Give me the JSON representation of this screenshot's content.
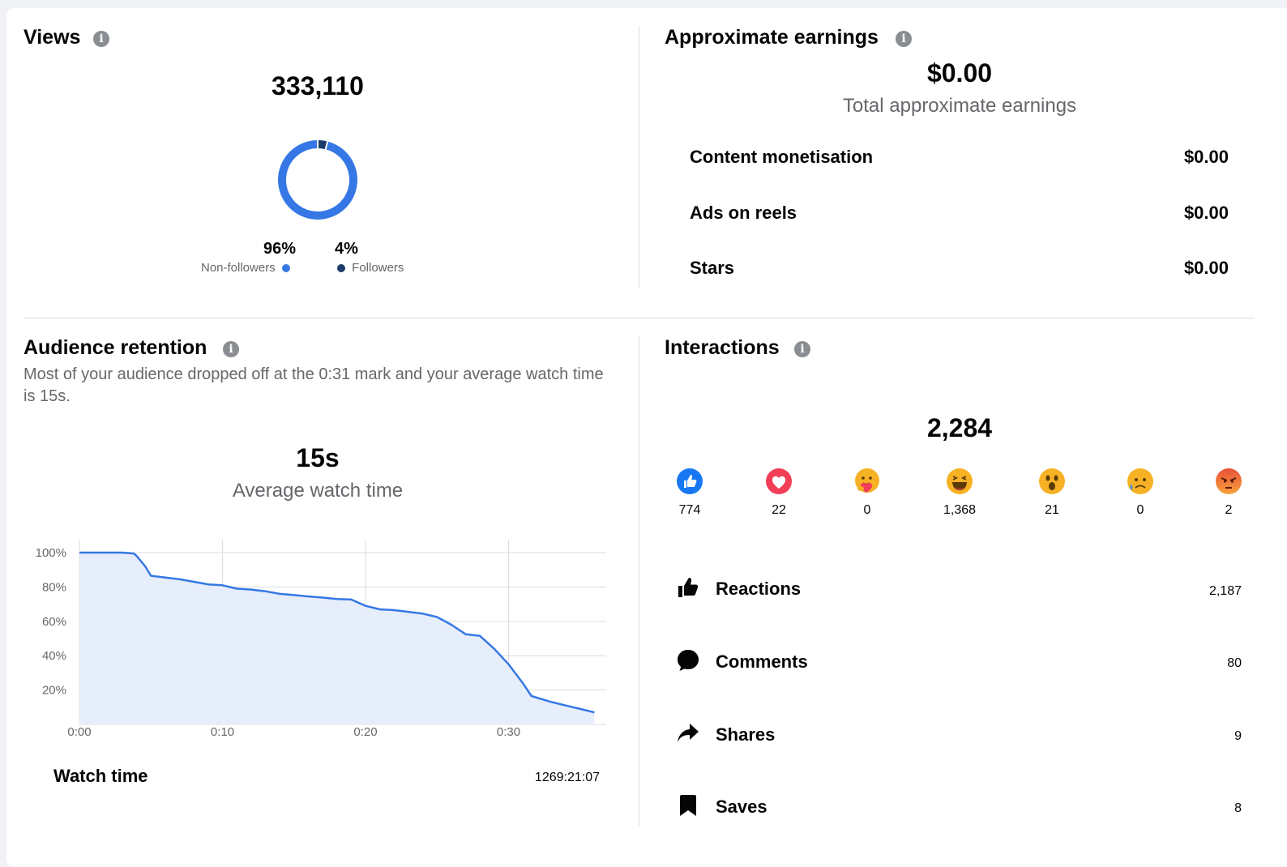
{
  "views": {
    "title": "Views",
    "total": "333,110",
    "non_followers": {
      "pct": "96%",
      "label": "Non-followers",
      "fraction": 0.96,
      "color": "#3578e5"
    },
    "followers": {
      "pct": "4%",
      "label": "Followers",
      "fraction": 0.04,
      "color": "#1c3d6b"
    }
  },
  "earnings": {
    "title": "Approximate earnings",
    "total": "$0.00",
    "total_label": "Total approximate earnings",
    "rows": [
      {
        "label": "Content monetisation",
        "value": "$0.00"
      },
      {
        "label": "Ads on reels",
        "value": "$0.00"
      },
      {
        "label": "Stars",
        "value": "$0.00"
      }
    ]
  },
  "retention": {
    "title": "Audience retention",
    "description": "Most of your audience dropped off at the 0:31 mark and your average watch time is 15s.",
    "avg_value": "15s",
    "avg_label": "Average watch time",
    "watch_time_label": "Watch time",
    "watch_time_value": "1269:21:07"
  },
  "chart_data": {
    "type": "area",
    "ylabels": [
      "100%",
      "80%",
      "60%",
      "40%",
      "20%"
    ],
    "xlabels": [
      "0:00",
      "0:10",
      "0:20",
      "0:30"
    ],
    "x_unit": "seconds",
    "ylim": [
      0,
      100
    ],
    "xlim": [
      0,
      36
    ],
    "grid": true,
    "color": "#3578e5",
    "fill": "#e7eefb",
    "x": [
      0,
      1,
      2,
      3,
      3.8,
      4.0,
      4.6,
      5.0,
      6,
      7,
      8,
      9,
      10,
      11,
      12,
      13,
      14,
      15,
      16,
      17,
      18,
      19,
      20,
      21,
      22,
      23,
      24,
      25,
      26,
      27,
      28,
      29,
      30,
      31,
      31.6,
      33,
      34,
      35,
      36
    ],
    "y": [
      100,
      100,
      100,
      100,
      99.5,
      98,
      92,
      86.5,
      85.5,
      84.5,
      83,
      81.5,
      81,
      79,
      78.5,
      77.5,
      76,
      75.3,
      74.5,
      73.8,
      73,
      72.7,
      69,
      67,
      66.5,
      65.5,
      64.5,
      62.5,
      58,
      52.5,
      51.5,
      44,
      35,
      24,
      16.5,
      13,
      11,
      9,
      7
    ]
  },
  "interactions": {
    "title": "Interactions",
    "total": "2,284",
    "reactions": [
      {
        "icon": "like-reaction-icon",
        "count": "774"
      },
      {
        "icon": "love-reaction-icon",
        "count": "22"
      },
      {
        "icon": "care-reaction-icon",
        "count": "0"
      },
      {
        "icon": "haha-reaction-icon",
        "count": "1,368"
      },
      {
        "icon": "wow-reaction-icon",
        "count": "21"
      },
      {
        "icon": "sad-reaction-icon",
        "count": "0"
      },
      {
        "icon": "angry-reaction-icon",
        "count": "2"
      }
    ],
    "metrics": [
      {
        "icon": "thumbs-up-icon",
        "label": "Reactions",
        "value": "2,187"
      },
      {
        "icon": "comment-icon",
        "label": "Comments",
        "value": "80"
      },
      {
        "icon": "share-icon",
        "label": "Shares",
        "value": "9"
      },
      {
        "icon": "bookmark-icon",
        "label": "Saves",
        "value": "8"
      }
    ]
  }
}
